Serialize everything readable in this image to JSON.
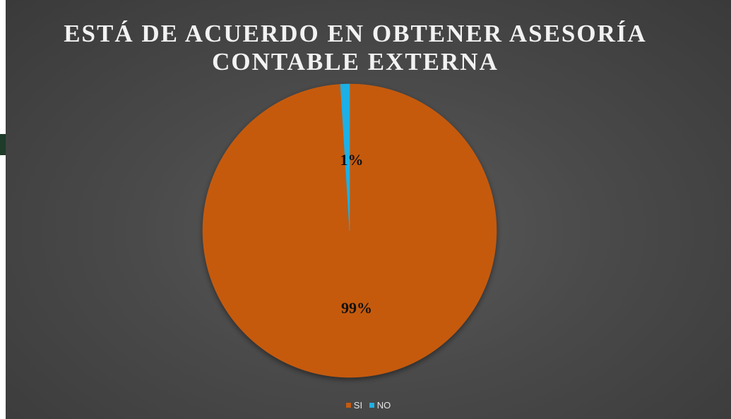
{
  "chart_data": {
    "type": "pie",
    "title": "ESTÁ DE ACUERDO EN OBTENER ASESORÍA CONTABLE EXTERNA",
    "title_lines": [
      "ESTÁ DE ACUERDO EN OBTENER ASESORÍA",
      "CONTABLE EXTERNA"
    ],
    "categories": [
      "SI",
      "NO"
    ],
    "values": [
      99,
      1
    ],
    "data_labels": [
      "99%",
      "1%"
    ],
    "colors": [
      "#c55a11",
      "#1fb0e6"
    ],
    "legend": "bottom",
    "legend_entries": [
      "SI",
      "NO"
    ]
  }
}
